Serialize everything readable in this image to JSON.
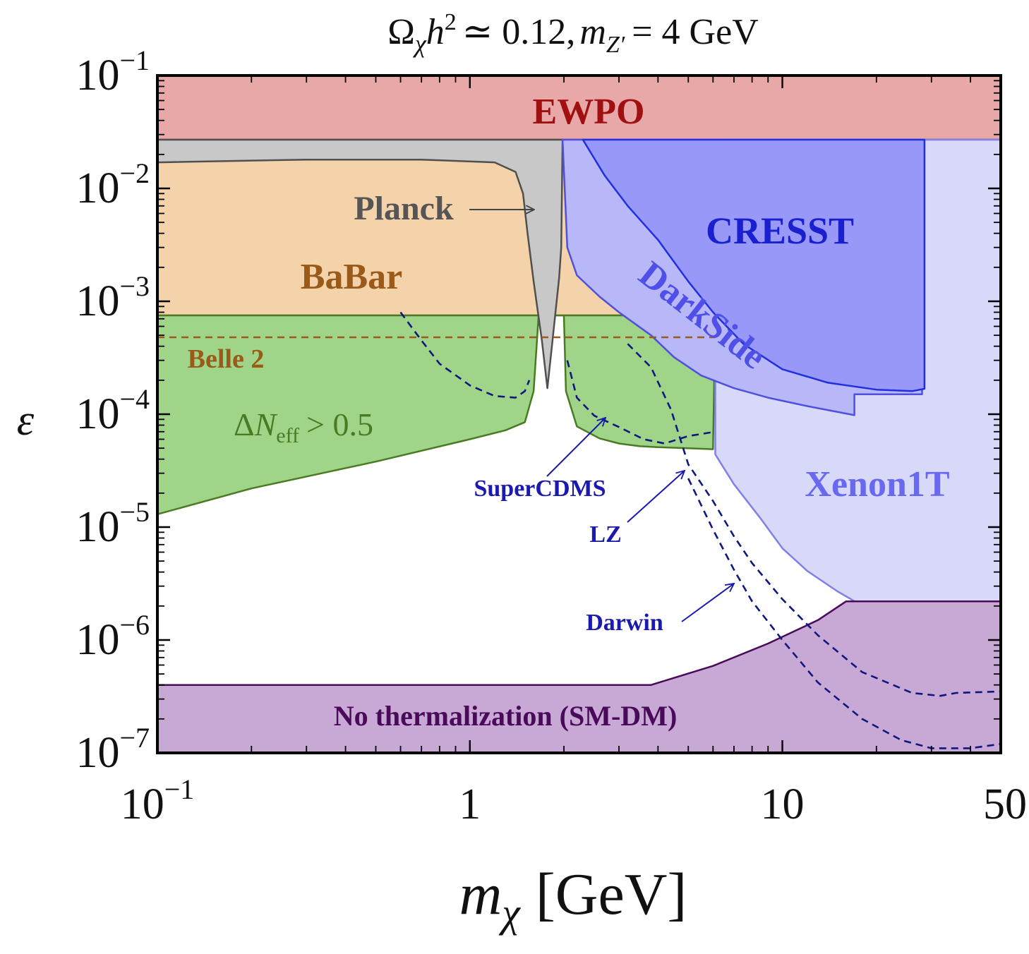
{
  "chart_data": {
    "type": "area",
    "title": "Ωχh² ≃ 0.12, mZ′ = 4 GeV",
    "title_parts": {
      "omega": "Ω",
      "chi": "χ",
      "h": "h",
      "sq": "2",
      "rest": "≃ 0.12,",
      "m": "m",
      "zprime": "Z′",
      "eq": "= 4 GeV"
    },
    "xlabel": "mχ [GeV]",
    "xlabel_parts": {
      "m": "m",
      "chi": "χ",
      "unit": "[GeV]"
    },
    "ylabel": "ε",
    "x_scale": "log",
    "y_scale": "log",
    "xlim": [
      0.1,
      50
    ],
    "ylim": [
      1e-07,
      0.1
    ],
    "x_ticks": [
      {
        "value": 0.1,
        "label": "10",
        "sup": "−1"
      },
      {
        "value": 1,
        "label": "1",
        "sup": ""
      },
      {
        "value": 10,
        "label": "10",
        "sup": ""
      },
      {
        "value": 50,
        "label": "50",
        "sup": ""
      }
    ],
    "y_ticks": [
      {
        "value": 0.1,
        "label": "10",
        "sup": "−1"
      },
      {
        "value": 0.01,
        "label": "10",
        "sup": "−2"
      },
      {
        "value": 0.001,
        "label": "10",
        "sup": "−3"
      },
      {
        "value": 0.0001,
        "label": "10",
        "sup": "−4"
      },
      {
        "value": 1e-05,
        "label": "10",
        "sup": "−5"
      },
      {
        "value": 1e-06,
        "label": "10",
        "sup": "−6"
      },
      {
        "value": 1e-07,
        "label": "10",
        "sup": "−7"
      }
    ],
    "regions": [
      {
        "name": "EWPO",
        "kind": "band",
        "fill": "#e8a8a8",
        "stroke": "#a01010",
        "bottom": 0.027
      },
      {
        "name": "BaBar",
        "kind": "band",
        "fill": "#f4d2aa",
        "stroke": "#a0602a",
        "bottom": 0.00075,
        "top": 0.027
      },
      {
        "name": "ΔNeff > 0.5",
        "kind": "polygon",
        "fill": "#a0d488",
        "stroke": "#4a7a22",
        "points": [
          [
            0.1,
            1.3e-05
          ],
          [
            0.2,
            2.2e-05
          ],
          [
            0.5,
            3.8e-05
          ],
          [
            1.0,
            6e-05
          ],
          [
            1.3,
            7.2e-05
          ],
          [
            1.5,
            8.5e-05
          ],
          [
            1.6,
            0.00016
          ],
          [
            1.66,
            0.00075
          ],
          [
            2.0,
            0.00075
          ],
          [
            2.03,
            0.00016
          ],
          [
            2.2,
            7.8e-05
          ],
          [
            2.6,
            6.1e-05
          ],
          [
            3.0,
            5.5e-05
          ],
          [
            3.5,
            5.2e-05
          ],
          [
            4.0,
            5.1e-05
          ],
          [
            5.0,
            5e-05
          ],
          [
            6.0,
            4.9e-05
          ],
          [
            6.1,
            0.00075
          ],
          [
            0.1,
            0.00075
          ]
        ]
      },
      {
        "name": "Planck",
        "kind": "polygon",
        "fill": "#c8c8c8",
        "stroke": "#505050",
        "points": [
          [
            0.1,
            0.017
          ],
          [
            0.3,
            0.018
          ],
          [
            0.7,
            0.018
          ],
          [
            1.2,
            0.017
          ],
          [
            1.4,
            0.014
          ],
          [
            1.48,
            0.009
          ],
          [
            1.53,
            0.004
          ],
          [
            1.6,
            0.0015
          ],
          [
            1.7,
            0.00045
          ],
          [
            1.77,
            0.00017
          ],
          [
            1.83,
            0.0004
          ],
          [
            1.93,
            0.0016
          ],
          [
            1.96,
            0.003
          ],
          [
            1.98,
            0.027
          ],
          [
            0.1,
            0.027
          ]
        ]
      },
      {
        "name": "Xenon1T",
        "kind": "polygon",
        "fill": "#d8d8f8",
        "stroke": "#8080e8",
        "points": [
          [
            6.1,
            4.4e-05
          ],
          [
            7.0,
            2.4e-05
          ],
          [
            8.5,
            1.2e-05
          ],
          [
            10.0,
            6.5e-06
          ],
          [
            12.0,
            4.1e-06
          ],
          [
            15.0,
            2.7e-06
          ],
          [
            20.0,
            1.7e-06
          ],
          [
            24.0,
            1.3e-06
          ],
          [
            28.0,
            1.2e-06
          ],
          [
            30.0,
            1.3e-06
          ],
          [
            40.0,
            1.4e-06
          ],
          [
            50.0,
            1.5e-06
          ],
          [
            50.0,
            0.027
          ],
          [
            6.1,
            0.027
          ]
        ]
      },
      {
        "name": "DarkSide",
        "kind": "polygon",
        "fill": "#b8b8f8",
        "stroke": "#5050e0",
        "points": [
          [
            1.98,
            0.027
          ],
          [
            2.05,
            0.003
          ],
          [
            2.2,
            0.0017
          ],
          [
            2.6,
            0.0011
          ],
          [
            3.0,
            0.0008
          ],
          [
            3.8,
            0.0005
          ],
          [
            4.5,
            0.00032
          ],
          [
            5.5,
            0.00022
          ],
          [
            7.0,
            0.00017
          ],
          [
            9.0,
            0.00014
          ],
          [
            12.0,
            0.000118
          ],
          [
            17.0,
            9.8e-05
          ],
          [
            17.0,
            0.00015
          ],
          [
            28.0,
            0.00015
          ],
          [
            28.0,
            0.027
          ]
        ]
      },
      {
        "name": "CRESST",
        "kind": "polygon",
        "fill": "#9898f8",
        "stroke": "#2030e0",
        "points": [
          [
            2.3,
            0.027
          ],
          [
            2.7,
            0.013
          ],
          [
            3.2,
            0.007
          ],
          [
            4.0,
            0.0035
          ],
          [
            5.0,
            0.0015
          ],
          [
            6.0,
            0.0008
          ],
          [
            7.5,
            0.00042
          ],
          [
            10.0,
            0.00025
          ],
          [
            14.0,
            0.00019
          ],
          [
            20.0,
            0.000165
          ],
          [
            26.0,
            0.00016
          ],
          [
            28.5,
            0.000168
          ],
          [
            28.5,
            0.027
          ]
        ]
      },
      {
        "name": "No thermalization (SM-DM)",
        "kind": "polygon",
        "fill": "#c8a8d4",
        "stroke": "#4a0a5a",
        "points": [
          [
            0.1,
            4e-07
          ],
          [
            3.8,
            4e-07
          ],
          [
            6.0,
            5.9e-07
          ],
          [
            9.0,
            9.3e-07
          ],
          [
            13.0,
            1.5e-06
          ],
          [
            16.0,
            2.2e-06
          ],
          [
            50.0,
            2.2e-06
          ],
          [
            50.0,
            1e-07
          ],
          [
            0.1,
            1e-07
          ]
        ]
      }
    ],
    "projections": [
      {
        "name": "SuperCDMS",
        "color": "#101880",
        "points": [
          [
            0.6,
            0.0008
          ],
          [
            0.7,
            0.00045
          ],
          [
            0.8,
            0.00028
          ],
          [
            1.0,
            0.00018
          ],
          [
            1.2,
            0.000145
          ],
          [
            1.4,
            0.00014
          ],
          [
            1.5,
            0.00016
          ],
          [
            1.55,
            0.0002
          ]
        ]
      },
      {
        "name": "SuperCDMS-high",
        "color": "#101880",
        "points": [
          [
            2.05,
            0.0003
          ],
          [
            2.2,
            0.00014
          ],
          [
            2.5,
            9.7e-05
          ],
          [
            3.0,
            7.7e-05
          ],
          [
            3.6,
            6e-05
          ],
          [
            4.2,
            5.5e-05
          ],
          [
            5.0,
            6.4e-05
          ],
          [
            6.1,
            7e-05
          ]
        ]
      },
      {
        "name": "LZ",
        "color": "#101880",
        "points": [
          [
            3.2,
            0.00042
          ],
          [
            3.8,
            0.00026
          ],
          [
            4.4,
            0.00011
          ],
          [
            5.0,
            3.6e-05
          ],
          [
            6.0,
            1.7e-05
          ],
          [
            7.0,
            8.3e-06
          ],
          [
            8.0,
            4.8e-06
          ],
          [
            10.0,
            2.3e-06
          ],
          [
            13.0,
            1.1e-06
          ],
          [
            18.0,
            5.2e-07
          ],
          [
            26.0,
            3.4e-07
          ],
          [
            32.0,
            3.2e-07
          ],
          [
            36.0,
            3.4e-07
          ],
          [
            50.0,
            3.5e-07
          ]
        ]
      },
      {
        "name": "Darwin",
        "color": "#101880",
        "points": [
          [
            5.0,
            2.7e-05
          ],
          [
            6.0,
            9.5e-06
          ],
          [
            7.0,
            4.2e-06
          ],
          [
            8.0,
            2.2e-06
          ],
          [
            10.0,
            1e-06
          ],
          [
            13.0,
            4.2e-07
          ],
          [
            18.0,
            2e-07
          ],
          [
            24.0,
            1.3e-07
          ],
          [
            30.0,
            1.1e-07
          ],
          [
            40.0,
            1.1e-07
          ],
          [
            50.0,
            1.2e-07
          ]
        ]
      },
      {
        "name": "Belle 2",
        "color": "#9a5a20",
        "points": [
          [
            0.1,
            0.00048
          ],
          [
            6.1,
            0.00048
          ]
        ]
      }
    ],
    "labels": {
      "ewpo": "EWPO",
      "babar": "BaBar",
      "belle2": "Belle 2",
      "planck": "Planck",
      "neff_delta": "Δ",
      "neff_n": "N",
      "neff_sub": "eff",
      "neff_rest": "> 0.5",
      "cresst": "CRESST",
      "darkside": "DarkSide",
      "xenon1t": "Xenon1T",
      "supercdms": "SuperCDMS",
      "lz": "LZ",
      "darwin": "Darwin",
      "nothermal": "No thermalization (SM-DM)"
    },
    "colors": {
      "ewpo_text": "#a01010",
      "babar_text": "#9a5a1a",
      "belle2_text": "#9a5a1a",
      "planck_text": "#555555",
      "neff_text": "#4a7a22",
      "cresst_text": "#1a20d0",
      "darkside_text": "#5050e8",
      "xenon1t_text": "#6868f0",
      "projection_text": "#1a1ab0",
      "nothermal_text": "#4a0a5a"
    },
    "grid": false,
    "legend": "none"
  }
}
